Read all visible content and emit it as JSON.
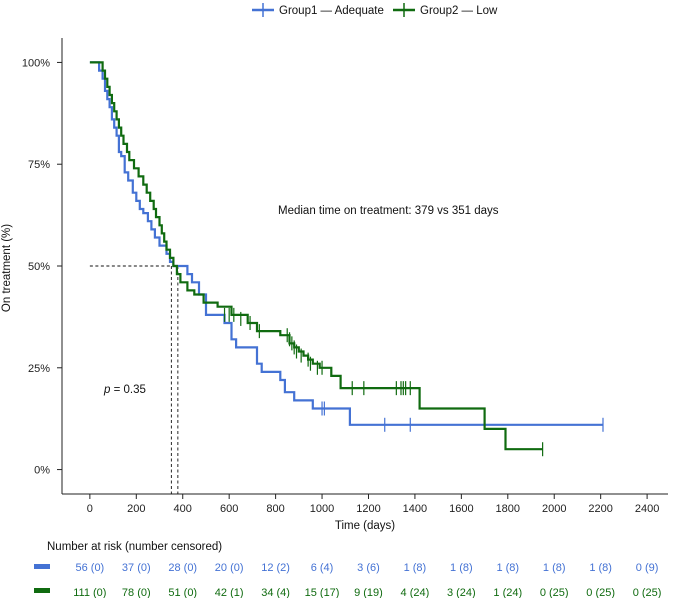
{
  "colors": {
    "group1": "#4472d4",
    "group2": "#106b10",
    "axis": "#222222",
    "ref": "#111111"
  },
  "legend": {
    "group1": "Group1 — Adequate",
    "group2": "Group2 — Low"
  },
  "annotation": {
    "median": "Median time on treatment: 379 vs 351 days",
    "p_prefix": "p",
    "p_value": " = 0.35"
  },
  "risk_table": {
    "title": "Number at risk (number censored)",
    "group1": [
      "56 (0)",
      "37 (0)",
      "28 (0)",
      "20 (0)",
      "12 (2)",
      "6 (4)",
      "3 (6)",
      "1 (8)",
      "1 (8)",
      "1 (8)",
      "1 (8)",
      "1 (8)",
      "0 (9)"
    ],
    "group2": [
      "111 (0)",
      "78 (0)",
      "51 (0)",
      "42 (1)",
      "34 (4)",
      "15 (17)",
      "9 (19)",
      "4 (24)",
      "3 (24)",
      "1 (24)",
      "0 (25)",
      "0 (25)",
      "0 (25)"
    ]
  },
  "chart_data": {
    "type": "line",
    "subtype": "kaplan-meier step",
    "xlabel": "Time (days)",
    "ylabel": "On treatment (%)",
    "xlim": [
      -120,
      2490
    ],
    "ylim": [
      -0.06,
      1.06
    ],
    "x_ticks": [
      0,
      200,
      400,
      600,
      800,
      1000,
      1200,
      1400,
      1600,
      1800,
      2000,
      2200,
      2400
    ],
    "y_ticks": [
      0,
      0.25,
      0.5,
      0.75,
      1.0
    ],
    "y_tick_labels": [
      "0%",
      "25%",
      "50%",
      "75%",
      "100%"
    ],
    "legend_position": "top",
    "median_reference": {
      "y": 0.5,
      "x_values": [
        351,
        379
      ]
    },
    "series": [
      {
        "name": "Group1 — Adequate",
        "color_key": "group1",
        "steps": [
          [
            0,
            1.0
          ],
          [
            40,
            0.98
          ],
          [
            55,
            0.96
          ],
          [
            65,
            0.93
          ],
          [
            75,
            0.91
          ],
          [
            85,
            0.89
          ],
          [
            95,
            0.86
          ],
          [
            105,
            0.84
          ],
          [
            115,
            0.82
          ],
          [
            125,
            0.78
          ],
          [
            135,
            0.77
          ],
          [
            150,
            0.73
          ],
          [
            165,
            0.71
          ],
          [
            185,
            0.68
          ],
          [
            200,
            0.66
          ],
          [
            215,
            0.64
          ],
          [
            230,
            0.63
          ],
          [
            250,
            0.61
          ],
          [
            265,
            0.59
          ],
          [
            280,
            0.57
          ],
          [
            300,
            0.55
          ],
          [
            330,
            0.53
          ],
          [
            345,
            0.51
          ],
          [
            360,
            0.5
          ],
          [
            420,
            0.48
          ],
          [
            440,
            0.46
          ],
          [
            470,
            0.43
          ],
          [
            500,
            0.38
          ],
          [
            580,
            0.36
          ],
          [
            610,
            0.32
          ],
          [
            630,
            0.3
          ],
          [
            720,
            0.26
          ],
          [
            740,
            0.24
          ],
          [
            820,
            0.22
          ],
          [
            840,
            0.19
          ],
          [
            880,
            0.17
          ],
          [
            960,
            0.15
          ],
          [
            1120,
            0.11
          ],
          [
            2210,
            0.11
          ]
        ],
        "end_x": 2210,
        "censored": [
          [
            1000,
            0.15
          ],
          [
            1010,
            0.15
          ],
          [
            1270,
            0.11
          ],
          [
            1380,
            0.11
          ],
          [
            2210,
            0.11
          ]
        ]
      },
      {
        "name": "Group2 — Low",
        "color_key": "group2",
        "steps": [
          [
            0,
            1.0
          ],
          [
            55,
            0.98
          ],
          [
            65,
            0.96
          ],
          [
            75,
            0.94
          ],
          [
            85,
            0.92
          ],
          [
            95,
            0.9
          ],
          [
            105,
            0.88
          ],
          [
            115,
            0.86
          ],
          [
            125,
            0.84
          ],
          [
            135,
            0.82
          ],
          [
            145,
            0.8
          ],
          [
            160,
            0.78
          ],
          [
            170,
            0.76
          ],
          [
            190,
            0.74
          ],
          [
            210,
            0.72
          ],
          [
            230,
            0.7
          ],
          [
            245,
            0.68
          ],
          [
            260,
            0.66
          ],
          [
            275,
            0.64
          ],
          [
            285,
            0.62
          ],
          [
            300,
            0.6
          ],
          [
            310,
            0.58
          ],
          [
            320,
            0.56
          ],
          [
            330,
            0.54
          ],
          [
            345,
            0.52
          ],
          [
            360,
            0.5
          ],
          [
            375,
            0.48
          ],
          [
            390,
            0.46
          ],
          [
            420,
            0.44
          ],
          [
            450,
            0.43
          ],
          [
            490,
            0.41
          ],
          [
            550,
            0.4
          ],
          [
            610,
            0.38
          ],
          [
            680,
            0.36
          ],
          [
            720,
            0.34
          ],
          [
            820,
            0.33
          ],
          [
            860,
            0.31
          ],
          [
            880,
            0.3
          ],
          [
            900,
            0.29
          ],
          [
            920,
            0.28
          ],
          [
            940,
            0.27
          ],
          [
            960,
            0.26
          ],
          [
            990,
            0.25
          ],
          [
            1040,
            0.23
          ],
          [
            1080,
            0.2
          ],
          [
            1420,
            0.15
          ],
          [
            1700,
            0.1
          ],
          [
            1790,
            0.05
          ],
          [
            1950,
            0.05
          ]
        ],
        "end_x": 1950,
        "censored": [
          [
            580,
            0.38
          ],
          [
            600,
            0.38
          ],
          [
            620,
            0.38
          ],
          [
            650,
            0.37
          ],
          [
            690,
            0.36
          ],
          [
            730,
            0.34
          ],
          [
            850,
            0.33
          ],
          [
            860,
            0.32
          ],
          [
            870,
            0.31
          ],
          [
            880,
            0.3
          ],
          [
            890,
            0.29
          ],
          [
            910,
            0.28
          ],
          [
            940,
            0.27
          ],
          [
            950,
            0.26
          ],
          [
            980,
            0.25
          ],
          [
            1000,
            0.25
          ],
          [
            1130,
            0.2
          ],
          [
            1180,
            0.2
          ],
          [
            1320,
            0.2
          ],
          [
            1340,
            0.2
          ],
          [
            1350,
            0.2
          ],
          [
            1360,
            0.2
          ],
          [
            1380,
            0.2
          ],
          [
            1950,
            0.05
          ]
        ]
      }
    ]
  }
}
